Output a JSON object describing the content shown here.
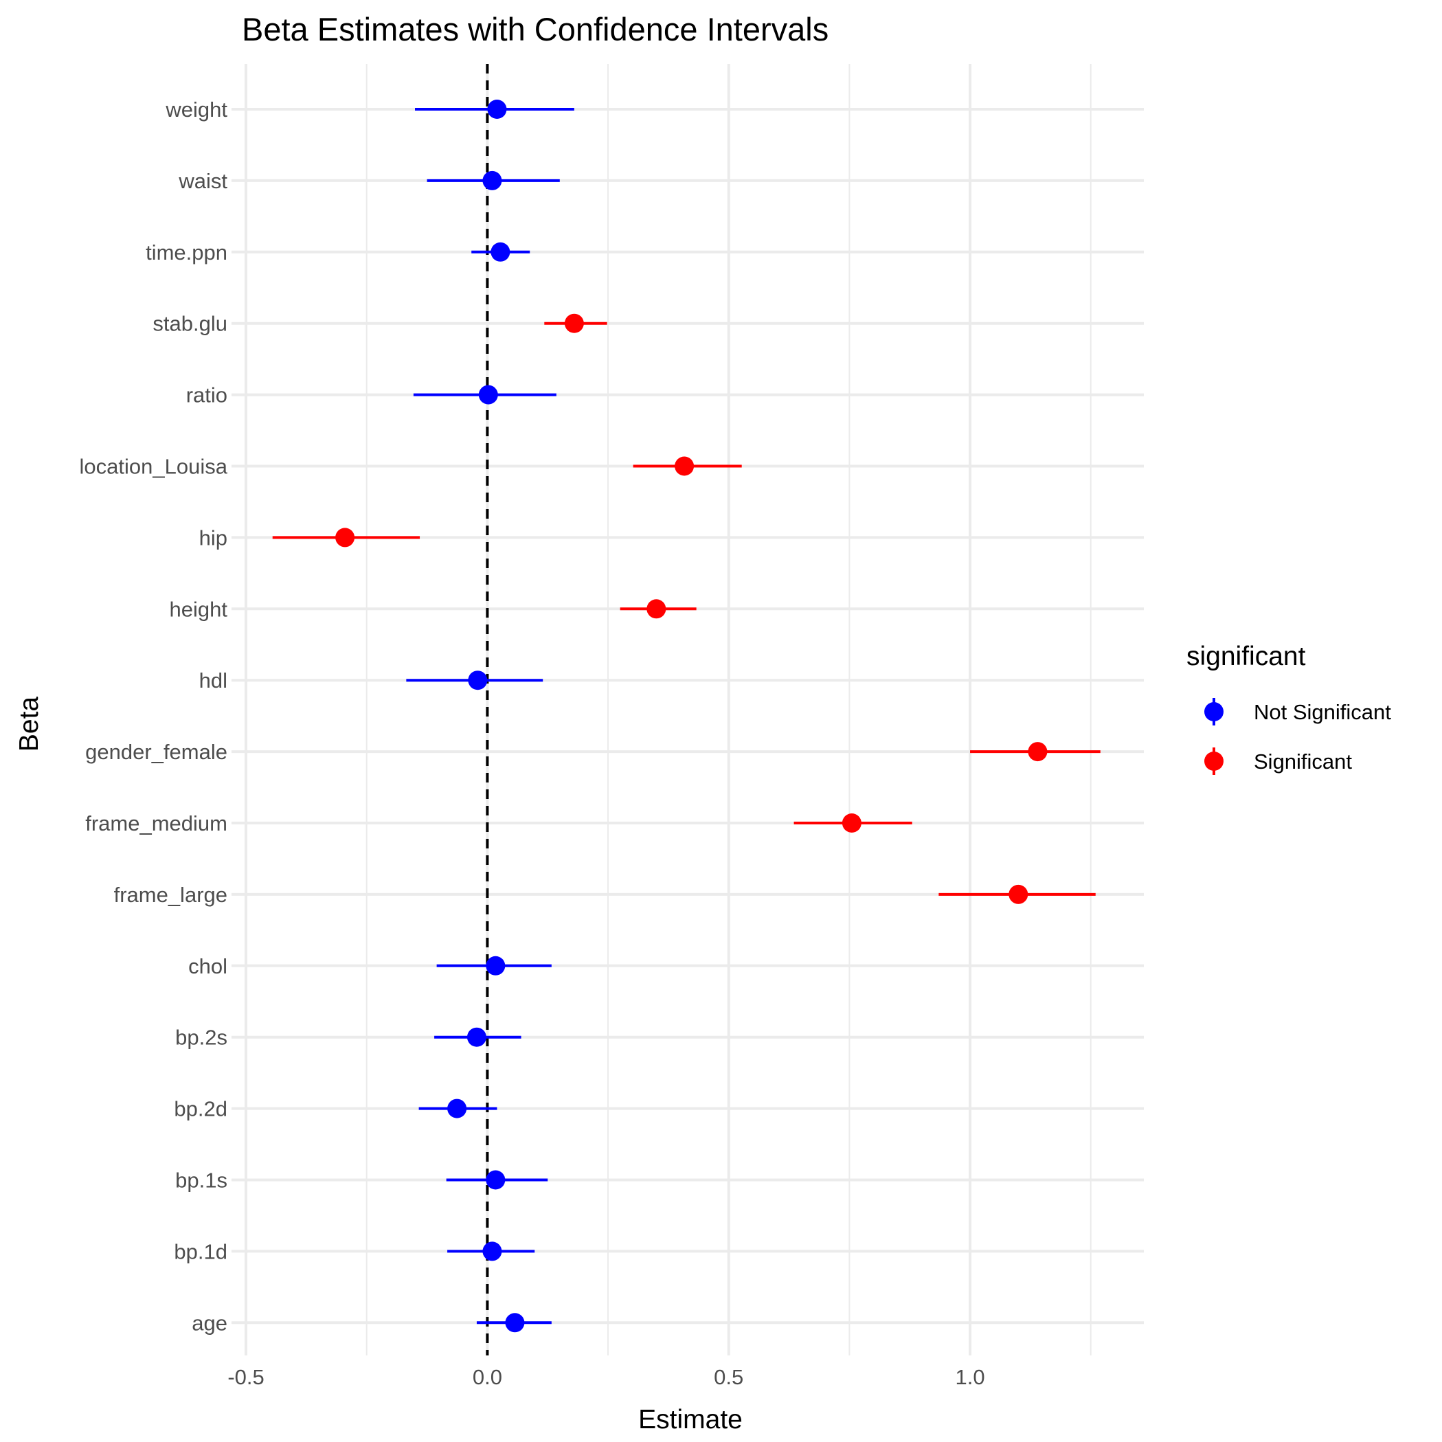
{
  "chart_data": {
    "type": "scatter",
    "title": "Beta Estimates with Confidence Intervals",
    "xlabel": "Estimate",
    "ylabel": "Beta",
    "xlim": [
      -0.53,
      1.36
    ],
    "x_ticks": [
      -0.5,
      0.0,
      0.5,
      1.0
    ],
    "x_tick_labels": [
      "-0.5",
      "0.0",
      "0.5",
      "1.0"
    ],
    "x_minor_ticks": [
      -0.25,
      0.25,
      0.75,
      1.25
    ],
    "reference_line": 0,
    "grid": true,
    "legend": {
      "title": "significant",
      "position": "right",
      "entries": [
        {
          "label": "Not Significant",
          "color": "#0000ff"
        },
        {
          "label": "Significant",
          "color": "#ff0000"
        }
      ]
    },
    "points": [
      {
        "term": "weight",
        "estimate": 0.02,
        "low": -0.15,
        "high": 0.18,
        "significant": false
      },
      {
        "term": "waist",
        "estimate": 0.01,
        "low": -0.125,
        "high": 0.15,
        "significant": false
      },
      {
        "term": "time.ppn",
        "estimate": 0.027,
        "low": -0.033,
        "high": 0.088,
        "significant": false
      },
      {
        "term": "stab.glu",
        "estimate": 0.18,
        "low": 0.118,
        "high": 0.248,
        "significant": true
      },
      {
        "term": "ratio",
        "estimate": 0.002,
        "low": -0.153,
        "high": 0.143,
        "significant": false
      },
      {
        "term": "location_Louisa",
        "estimate": 0.408,
        "low": 0.302,
        "high": 0.527,
        "significant": true
      },
      {
        "term": "hip",
        "estimate": -0.295,
        "low": -0.445,
        "high": -0.14,
        "significant": true
      },
      {
        "term": "height",
        "estimate": 0.35,
        "low": 0.275,
        "high": 0.433,
        "significant": true
      },
      {
        "term": "hdl",
        "estimate": -0.02,
        "low": -0.168,
        "high": 0.115,
        "significant": false
      },
      {
        "term": "gender_female",
        "estimate": 1.14,
        "low": 1.0,
        "high": 1.27,
        "significant": true
      },
      {
        "term": "frame_medium",
        "estimate": 0.755,
        "low": 0.635,
        "high": 0.88,
        "significant": true
      },
      {
        "term": "frame_large",
        "estimate": 1.1,
        "low": 0.935,
        "high": 1.26,
        "significant": true
      },
      {
        "term": "chol",
        "estimate": 0.017,
        "low": -0.105,
        "high": 0.133,
        "significant": false
      },
      {
        "term": "bp.2s",
        "estimate": -0.022,
        "low": -0.11,
        "high": 0.07,
        "significant": false
      },
      {
        "term": "bp.2d",
        "estimate": -0.063,
        "low": -0.142,
        "high": 0.02,
        "significant": false
      },
      {
        "term": "bp.1s",
        "estimate": 0.017,
        "low": -0.085,
        "high": 0.125,
        "significant": false
      },
      {
        "term": "bp.1d",
        "estimate": 0.01,
        "low": -0.083,
        "high": 0.098,
        "significant": false
      },
      {
        "term": "age",
        "estimate": 0.057,
        "low": -0.022,
        "high": 0.133,
        "significant": false
      }
    ]
  }
}
